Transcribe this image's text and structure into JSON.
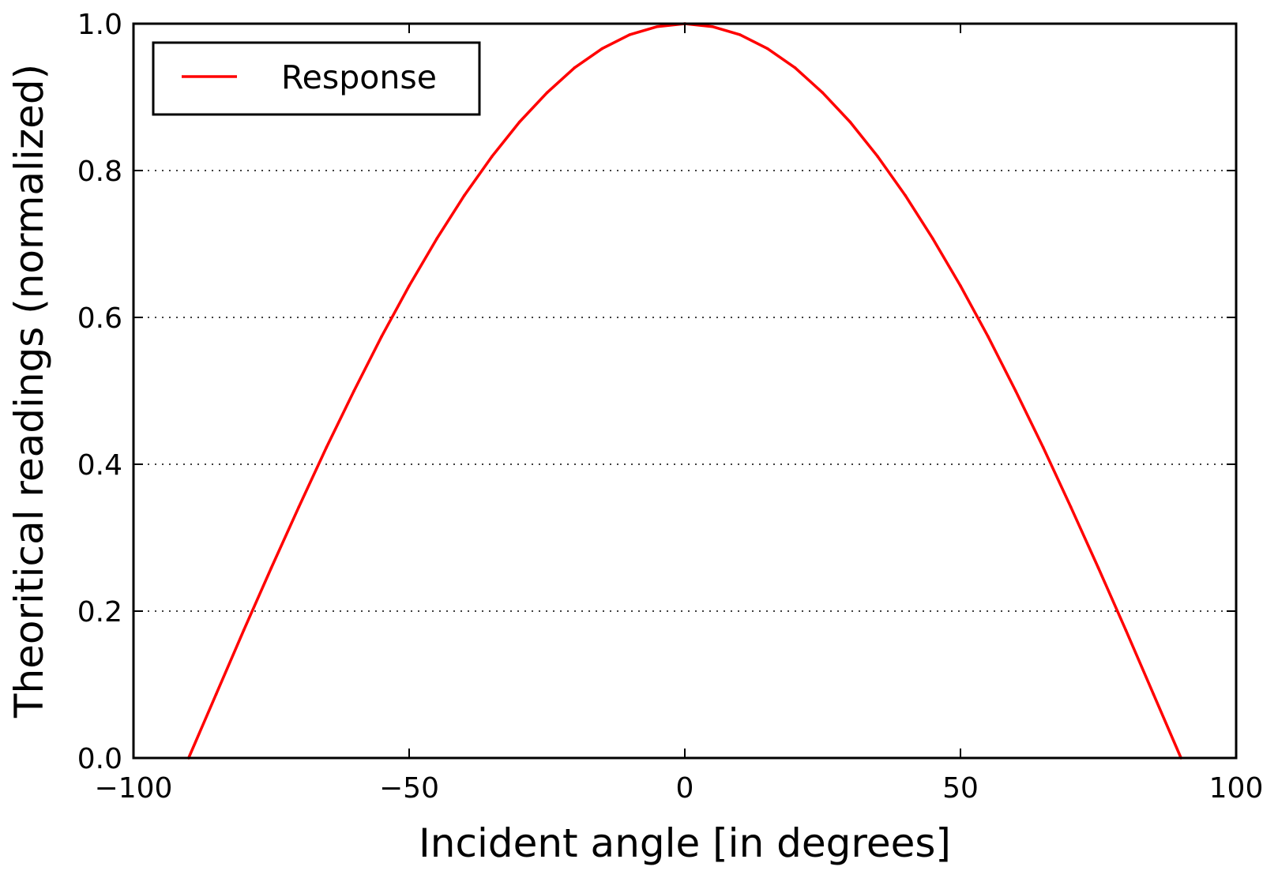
{
  "chart_data": {
    "type": "line",
    "title": "",
    "xlabel": "Incident angle [in degrees]",
    "ylabel": "Theoritical readings (normalized)",
    "xlim": [
      -100,
      100
    ],
    "ylim": [
      0.0,
      1.0
    ],
    "x_ticks": [
      -100,
      -50,
      0,
      50,
      100
    ],
    "x_tick_labels": [
      "−100",
      "−50",
      "0",
      "50",
      "100"
    ],
    "y_ticks": [
      0.0,
      0.2,
      0.4,
      0.6,
      0.8,
      1.0
    ],
    "y_tick_labels": [
      "0.0",
      "0.2",
      "0.4",
      "0.6",
      "0.8",
      "1.0"
    ],
    "grid": "horizontal dotted",
    "legend_position": "top-left",
    "series": [
      {
        "name": "Response",
        "color": "#ff0000",
        "x": [
          -90,
          -85,
          -80,
          -75,
          -70,
          -65,
          -60,
          -55,
          -50,
          -45,
          -40,
          -35,
          -30,
          -25,
          -20,
          -15,
          -10,
          -5,
          0,
          5,
          10,
          15,
          20,
          25,
          30,
          35,
          40,
          45,
          50,
          55,
          60,
          65,
          70,
          75,
          80,
          85,
          90
        ],
        "y": [
          0.0,
          0.087,
          0.174,
          0.259,
          0.342,
          0.423,
          0.5,
          0.574,
          0.643,
          0.707,
          0.766,
          0.819,
          0.866,
          0.906,
          0.94,
          0.966,
          0.985,
          0.996,
          1.0,
          0.996,
          0.985,
          0.966,
          0.94,
          0.906,
          0.866,
          0.819,
          0.766,
          0.707,
          0.643,
          0.574,
          0.5,
          0.423,
          0.342,
          0.259,
          0.174,
          0.087,
          0.0
        ]
      }
    ]
  }
}
